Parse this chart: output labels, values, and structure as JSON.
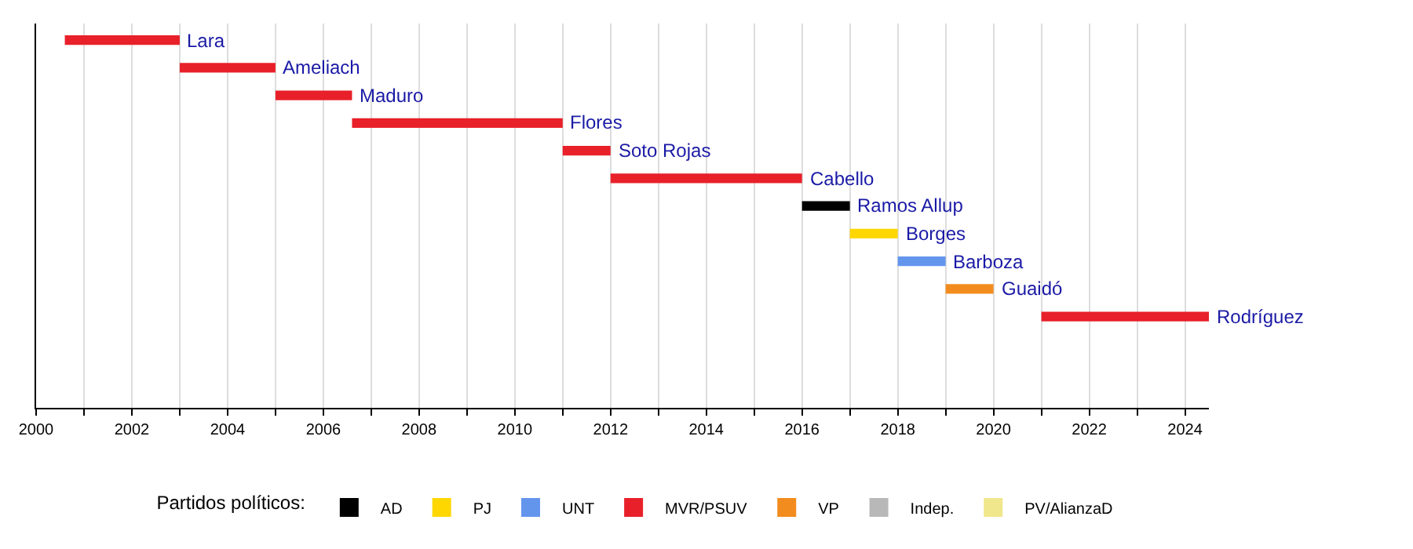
{
  "chart_data": {
    "type": "bar",
    "orientation": "horizontal",
    "legend_title": "Partidos políticos:",
    "legend": "bottom",
    "grid": "x",
    "tick_labels": "x",
    "categories": [
      "Lara",
      "Ameliach",
      "Maduro",
      "Flores",
      "Soto Rojas",
      "Cabello",
      "Ramos Allup",
      "Borges",
      "Barboza",
      "Guaidó",
      "Rodríguez"
    ],
    "series": [
      {
        "name": "AD",
        "color": "#000000",
        "base": [
          null,
          null,
          null,
          null,
          null,
          null,
          2016.0,
          null,
          null,
          null,
          null
        ],
        "values": [
          null,
          null,
          null,
          null,
          null,
          null,
          1.0,
          null,
          null,
          null,
          null
        ]
      },
      {
        "name": "PJ",
        "color": "#ffd700",
        "base": [
          null,
          null,
          null,
          null,
          null,
          null,
          null,
          2017.0,
          null,
          null,
          null
        ],
        "values": [
          null,
          null,
          null,
          null,
          null,
          null,
          null,
          1.0,
          null,
          null,
          null
        ]
      },
      {
        "name": "UNT",
        "color": "#6495ed",
        "base": [
          null,
          null,
          null,
          null,
          null,
          null,
          null,
          null,
          2018.0,
          null,
          null
        ],
        "values": [
          null,
          null,
          null,
          null,
          null,
          null,
          null,
          null,
          1.0,
          null,
          null
        ]
      },
      {
        "name": "MVR/PSUV",
        "color": "#e8202a",
        "base": [
          2000.6,
          2003.0,
          2005.0,
          2006.6,
          2011.0,
          2012.0,
          null,
          null,
          null,
          null,
          2021.0
        ],
        "values": [
          2.4,
          2.0,
          1.6,
          4.4,
          1.0,
          4.0,
          null,
          null,
          null,
          null,
          3.5
        ]
      },
      {
        "name": "VP",
        "color": "#f28c1e",
        "base": [
          null,
          null,
          null,
          null,
          null,
          null,
          null,
          null,
          null,
          2019.0,
          null
        ],
        "values": [
          null,
          null,
          null,
          null,
          null,
          null,
          null,
          null,
          null,
          1.0,
          null
        ]
      },
      {
        "name": "Indep.",
        "color": "#b8b8b8",
        "values": [
          null,
          null,
          null,
          null,
          null,
          null,
          null,
          null,
          null,
          null,
          null
        ]
      },
      {
        "name": "PV/AlianzaD",
        "color": "#f0e68c",
        "values": [
          null,
          null,
          null,
          null,
          null,
          null,
          null,
          null,
          null,
          null,
          null
        ]
      }
    ],
    "xlim": [
      2000,
      2024.5
    ],
    "xticks": [
      2000,
      {
        "value": 2001,
        "label": null
      },
      2002,
      {
        "value": 2003,
        "label": null
      },
      2004,
      {
        "value": 2005,
        "label": null
      },
      2006,
      {
        "value": 2007,
        "label": null
      },
      2008,
      {
        "value": 2009,
        "label": null
      },
      2010,
      {
        "value": 2011,
        "label": null
      },
      2012,
      {
        "value": 2013,
        "label": null
      },
      2014,
      {
        "value": 2015,
        "label": null
      },
      2016,
      {
        "value": 2017,
        "label": null
      },
      2018,
      {
        "value": 2019,
        "label": null
      },
      2020,
      {
        "value": 2021,
        "label": null
      },
      2022,
      {
        "value": 2023,
        "label": null
      },
      2024
    ]
  }
}
